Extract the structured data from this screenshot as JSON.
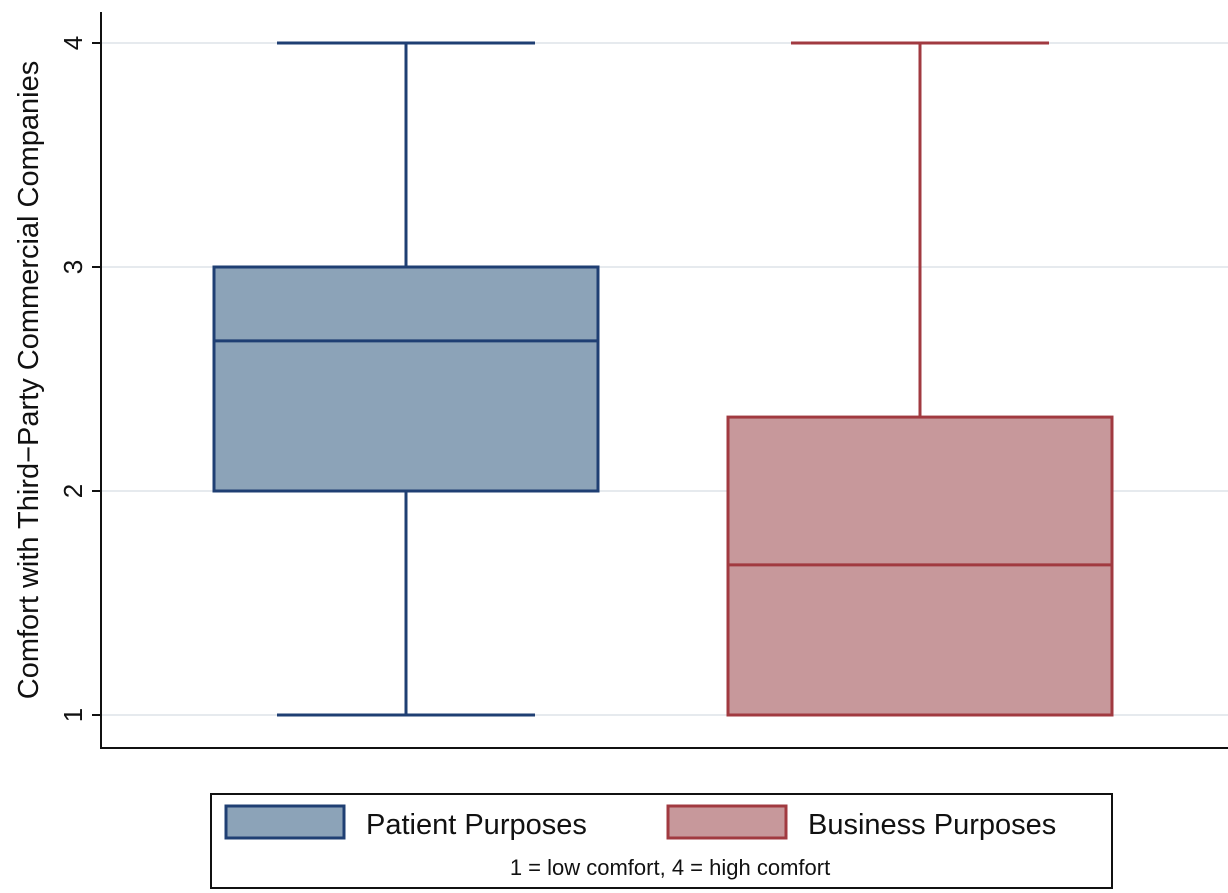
{
  "chart_data": {
    "type": "box",
    "ylabel": "Comfort with Third−Party Commercial Companies",
    "ylim": [
      1,
      4
    ],
    "yticks": [
      1,
      2,
      3,
      4
    ],
    "grid": true,
    "legend_position": "bottom",
    "legend_note": "1 = low comfort, 4 = high comfort",
    "series": [
      {
        "name": "Patient Purposes",
        "color": "#8ca3b8",
        "edge_color": "#1f3f73",
        "whisker_low": 1,
        "q1": 2,
        "median": 2.67,
        "q3": 3,
        "whisker_high": 4
      },
      {
        "name": "Business Purposes",
        "color": "#c7989b",
        "edge_color": "#a13a40",
        "whisker_low": 1,
        "q1": 1,
        "median": 1.67,
        "q3": 2.33,
        "whisker_high": 4
      }
    ]
  }
}
